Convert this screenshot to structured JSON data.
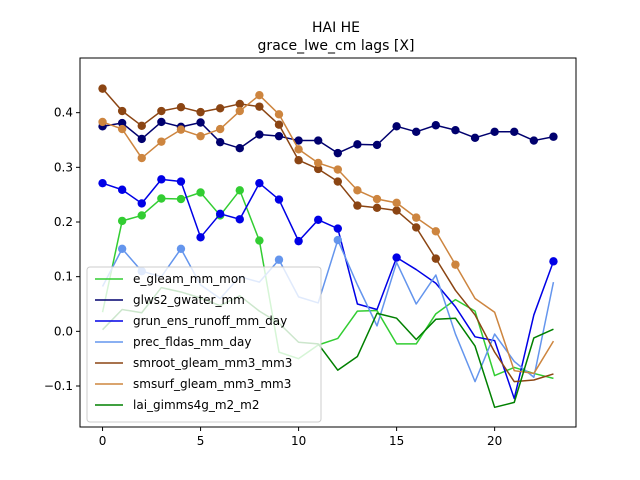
{
  "chart_data": {
    "type": "line",
    "title": "HAI HE",
    "subtitle": "grace_lwe_cm lags [X]",
    "xlabel": "",
    "ylabel": "",
    "xlim": [
      -1.15,
      24.15
    ],
    "ylim": [
      -0.175,
      0.5
    ],
    "xticks": [
      0,
      5,
      10,
      15,
      20
    ],
    "yticks": [
      -0.1,
      0.0,
      0.1,
      0.2,
      0.3,
      0.4
    ],
    "ytick_labels": [
      "−0.1",
      "0.0",
      "0.1",
      "0.2",
      "0.3",
      "0.4"
    ],
    "grid": false,
    "legend_position": "lower-left",
    "series": [
      {
        "name": "e_gleam_mm_mon",
        "color": "#32cd32",
        "x": [
          0,
          1,
          2,
          3,
          4,
          5,
          6,
          7,
          8,
          9,
          10,
          11,
          12,
          13,
          14,
          15,
          16,
          17,
          18,
          19,
          20,
          21,
          22,
          23
        ],
        "y": [
          0.035,
          0.202,
          0.212,
          0.243,
          0.242,
          0.254,
          0.212,
          0.258,
          0.166,
          -0.038,
          -0.05,
          -0.025,
          -0.013,
          0.037,
          0.038,
          -0.023,
          -0.023,
          0.032,
          0.058,
          0.037,
          -0.081,
          -0.066,
          -0.077,
          -0.086
        ],
        "markers": [
          false,
          true,
          true,
          true,
          true,
          true,
          true,
          true,
          true,
          false,
          false,
          false,
          false,
          false,
          false,
          false,
          false,
          false,
          false,
          false,
          false,
          false,
          false,
          false
        ]
      },
      {
        "name": "glws2_gwater_mm",
        "color": "#00006e",
        "x": [
          0,
          1,
          2,
          3,
          4,
          5,
          6,
          7,
          8,
          9,
          10,
          11,
          12,
          13,
          14,
          15,
          16,
          17,
          18,
          19,
          20,
          21,
          22,
          23
        ],
        "y": [
          0.375,
          0.381,
          0.352,
          0.383,
          0.374,
          0.382,
          0.346,
          0.335,
          0.36,
          0.357,
          0.349,
          0.349,
          0.326,
          0.342,
          0.341,
          0.375,
          0.365,
          0.377,
          0.368,
          0.354,
          0.365,
          0.365,
          0.349,
          0.356
        ],
        "markers": [
          true,
          true,
          true,
          true,
          true,
          true,
          true,
          true,
          true,
          true,
          true,
          true,
          true,
          true,
          true,
          true,
          true,
          true,
          true,
          true,
          true,
          true,
          true,
          true
        ]
      },
      {
        "name": "grun_ens_runoff_mm_day",
        "color": "#0000e6",
        "x": [
          0,
          1,
          2,
          3,
          4,
          5,
          6,
          7,
          8,
          9,
          10,
          11,
          12,
          13,
          14,
          15,
          16,
          17,
          18,
          19,
          20,
          21,
          22,
          23
        ],
        "y": [
          0.271,
          0.259,
          0.234,
          0.278,
          0.274,
          0.172,
          0.215,
          0.205,
          0.271,
          0.241,
          0.165,
          0.204,
          0.188,
          0.05,
          0.04,
          0.135,
          0.113,
          0.088,
          0.045,
          -0.01,
          -0.017,
          -0.123,
          0.03,
          0.128
        ],
        "markers": [
          true,
          true,
          true,
          true,
          true,
          true,
          true,
          true,
          true,
          true,
          true,
          true,
          true,
          false,
          false,
          true,
          false,
          false,
          false,
          false,
          false,
          false,
          false,
          true
        ]
      },
      {
        "name": "prec_fldas_mm_day",
        "color": "#6495ed",
        "x": [
          0,
          1,
          2,
          3,
          4,
          5,
          6,
          7,
          8,
          9,
          10,
          11,
          12,
          13,
          14,
          15,
          16,
          17,
          18,
          19,
          20,
          21,
          22,
          23
        ],
        "y": [
          0.082,
          0.151,
          0.11,
          0.1,
          0.151,
          0.085,
          0.06,
          0.1,
          0.09,
          0.131,
          0.063,
          0.052,
          0.167,
          0.085,
          0.01,
          0.126,
          0.05,
          0.103,
          -0.005,
          -0.092,
          -0.005,
          -0.055,
          -0.084,
          0.09
        ],
        "markers": [
          false,
          true,
          true,
          false,
          true,
          false,
          false,
          false,
          false,
          true,
          false,
          false,
          true,
          false,
          false,
          false,
          false,
          false,
          false,
          false,
          false,
          false,
          false,
          false
        ]
      },
      {
        "name": "smroot_gleam_mm3_mm3",
        "color": "#8b4513",
        "x": [
          0,
          1,
          2,
          3,
          4,
          5,
          6,
          7,
          8,
          9,
          10,
          11,
          12,
          13,
          14,
          15,
          16,
          17,
          18,
          19,
          20,
          21,
          22,
          23
        ],
        "y": [
          0.444,
          0.403,
          0.376,
          0.403,
          0.41,
          0.401,
          0.408,
          0.416,
          0.411,
          0.378,
          0.313,
          0.297,
          0.274,
          0.23,
          0.226,
          0.221,
          0.19,
          0.133,
          0.075,
          0.03,
          -0.038,
          -0.092,
          -0.089,
          -0.078
        ],
        "markers": [
          true,
          true,
          true,
          true,
          true,
          true,
          true,
          true,
          true,
          true,
          true,
          true,
          true,
          true,
          true,
          true,
          true,
          true,
          false,
          false,
          false,
          false,
          false,
          false
        ]
      },
      {
        "name": "smsurf_gleam_mm3_mm3",
        "color": "#cd853f",
        "x": [
          0,
          1,
          2,
          3,
          4,
          5,
          6,
          7,
          8,
          9,
          10,
          11,
          12,
          13,
          14,
          15,
          16,
          17,
          18,
          19,
          20,
          21,
          22,
          23
        ],
        "y": [
          0.383,
          0.37,
          0.317,
          0.347,
          0.369,
          0.357,
          0.37,
          0.403,
          0.432,
          0.397,
          0.333,
          0.308,
          0.296,
          0.258,
          0.242,
          0.235,
          0.208,
          0.183,
          0.122,
          0.06,
          0.035,
          -0.072,
          -0.077,
          -0.018
        ],
        "markers": [
          true,
          true,
          true,
          true,
          true,
          true,
          true,
          true,
          true,
          true,
          true,
          true,
          true,
          true,
          true,
          true,
          true,
          true,
          true,
          false,
          false,
          false,
          false,
          false
        ]
      },
      {
        "name": "lai_gimms4g_m2_m2",
        "color": "#008000",
        "x": [
          0,
          1,
          2,
          3,
          4,
          5,
          6,
          7,
          8,
          9,
          10,
          11,
          12,
          13,
          14,
          15,
          16,
          17,
          18,
          19,
          20,
          21,
          22,
          23
        ],
        "y": [
          0.003,
          0.04,
          0.034,
          0.08,
          0.072,
          0.061,
          0.047,
          0.065,
          0.037,
          0.015,
          -0.02,
          -0.023,
          -0.071,
          -0.046,
          0.033,
          0.024,
          -0.015,
          0.022,
          0.024,
          -0.027,
          -0.139,
          -0.13,
          -0.012,
          0.004
        ],
        "markers": [
          false,
          false,
          false,
          false,
          false,
          false,
          false,
          false,
          false,
          false,
          false,
          false,
          false,
          false,
          false,
          false,
          false,
          false,
          false,
          false,
          false,
          false,
          false,
          false
        ]
      }
    ]
  }
}
